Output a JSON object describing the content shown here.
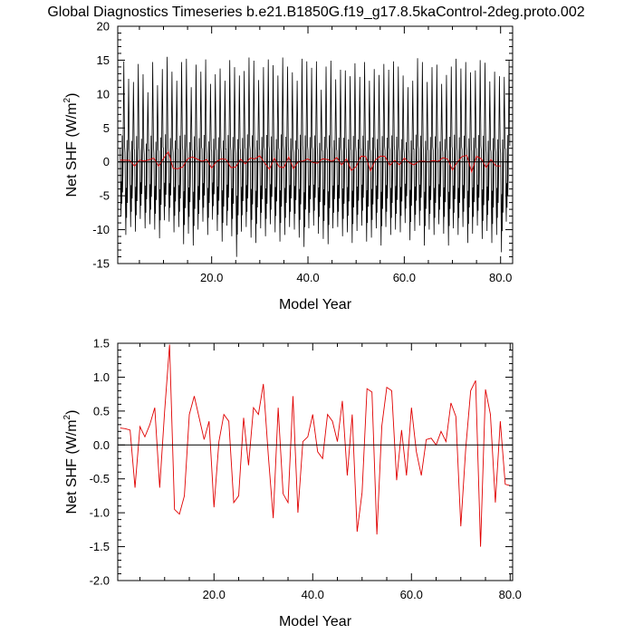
{
  "title": "Global Diagnostics Timeseries b.e21.B1850G.f19_g17.8.5kaControl-2deg.proto.002",
  "colors": {
    "monthly": "#000000",
    "annual": "#e00000",
    "axis": "#000000",
    "background": "#ffffff"
  },
  "chart_data": [
    {
      "type": "line",
      "name": "monthly-and-annual-net-shf",
      "xlabel": "Model Year",
      "ylabel": {
        "main": "Net SHF (W/m",
        "superscript": "2",
        "suffix": ")"
      },
      "xlim": [
        0.5,
        82.5
      ],
      "ylim": [
        -15,
        20
      ],
      "xticks": [
        20.0,
        40.0,
        60.0,
        80.0
      ],
      "xtick_labels": [
        "20.0",
        "40.0",
        "60.0",
        "80.0"
      ],
      "yticks": [
        -15,
        -10,
        -5,
        0,
        5,
        10,
        15,
        20
      ],
      "ytick_labels": [
        "-15",
        "-10",
        "-5",
        "0",
        "5",
        "10",
        "15",
        "20"
      ],
      "reference_line": 0,
      "series": [
        {
          "name": "monthly",
          "color": "#000000",
          "pattern": "seasonal cycle: annual peak ~ +12 to +16, annual trough ~ -8 to -14",
          "annual_peaks": [
            15.6,
            12.9,
            12.4,
            15.2,
            13.6,
            10.8,
            15.5,
            11.9,
            14.4,
            16.3,
            14.0,
            12.6,
            15.5,
            16.0,
            11.6,
            15.1,
            14.0,
            15.9,
            12.1,
            13.6,
            14.5,
            12.6,
            15.8,
            14.7,
            13.4,
            14.1,
            16.2,
            15.7,
            12.7,
            14.7,
            15.9,
            15.0,
            13.4,
            16.2,
            14.8,
            13.9,
            12.6,
            16.0,
            15.6,
            14.6,
            15.6,
            11.2,
            14.8,
            15.7,
            12.8,
            14.3,
            14.2,
            13.3,
            15.3,
            13.2,
            15.5,
            12.6,
            14.4,
            13.5,
            15.2,
            14.3,
            15.6,
            14.8,
            13.4,
            11.6,
            12.6,
            16.1,
            15.5,
            12.4,
            14.7,
            15.1,
            12.1,
            13.5,
            14.8,
            16.0,
            14.5,
            15.5,
            13.9,
            14.2,
            15.8,
            15.4,
            12.5,
            14.0,
            13.3,
            13.2,
            15.8
          ],
          "annual_troughs": [
            -8.2,
            -11.0,
            -9.8,
            -10.5,
            -8.6,
            -10.0,
            -9.4,
            -10.2,
            -11.5,
            -8.8,
            -9.0,
            -10.6,
            -9.8,
            -12.4,
            -10.8,
            -12.6,
            -10.2,
            -9.0,
            -11.0,
            -8.7,
            -10.4,
            -12.0,
            -9.6,
            -11.2,
            -14.3,
            -10.5,
            -9.8,
            -11.4,
            -12.2,
            -10.0,
            -11.2,
            -9.4,
            -10.6,
            -12.0,
            -11.0,
            -9.8,
            -10.2,
            -11.4,
            -12.8,
            -10.0,
            -9.6,
            -10.8,
            -11.6,
            -12.4,
            -10.0,
            -9.8,
            -11.2,
            -10.6,
            -12.2,
            -10.4,
            -9.6,
            -12.0,
            -11.4,
            -10.0,
            -12.6,
            -9.8,
            -11.0,
            -10.2,
            -10.6,
            -9.2,
            -11.8,
            -10.4,
            -9.6,
            -12.6,
            -10.2,
            -11.0,
            -9.4,
            -10.8,
            -12.6,
            -10.0,
            -11.0,
            -9.8,
            -12.2,
            -10.8,
            -9.6,
            -11.6,
            -10.4,
            -12.2,
            -11.0,
            -13.6,
            -9.0
          ]
        },
        {
          "name": "annual-mean",
          "color": "#e00000",
          "values": [
            0.25,
            0.24,
            0.22,
            -0.63,
            0.27,
            0.12,
            0.3,
            0.55,
            -0.63,
            0.5,
            1.48,
            -0.95,
            -1.02,
            -0.75,
            0.45,
            0.72,
            0.4,
            0.08,
            0.35,
            -0.92,
            0.05,
            0.45,
            0.35,
            -0.85,
            -0.75,
            0.4,
            -0.3,
            0.55,
            0.45,
            0.9,
            -0.15,
            -1.08,
            0.55,
            -0.72,
            -0.85,
            0.72,
            -1.0,
            0.05,
            0.12,
            0.45,
            -0.1,
            -0.2,
            0.45,
            0.35,
            0.05,
            0.65,
            -0.45,
            0.45,
            -1.28,
            -0.7,
            0.83,
            0.78,
            -1.32,
            0.28,
            0.85,
            0.8,
            -0.52,
            0.22,
            -0.45,
            0.55,
            -0.1,
            -0.45,
            0.08,
            0.1,
            0.0,
            0.2,
            0.05,
            0.62,
            0.42,
            -1.2,
            -0.05,
            0.8,
            0.95,
            -1.5,
            0.82,
            0.45,
            -0.85,
            0.35,
            -0.58,
            -0.6
          ]
        }
      ]
    },
    {
      "type": "line",
      "name": "annual-net-shf",
      "xlabel": "Model Year",
      "ylabel": {
        "main": "Net SHF (W/m",
        "superscript": "2",
        "suffix": ")"
      },
      "xlim": [
        0.5,
        80.5
      ],
      "ylim": [
        -2.0,
        1.5
      ],
      "xticks": [
        20.0,
        40.0,
        60.0,
        80.0
      ],
      "xtick_labels": [
        "20.0",
        "40.0",
        "60.0",
        "80.0"
      ],
      "yticks": [
        -2.0,
        -1.5,
        -1.0,
        -0.5,
        0.0,
        0.5,
        1.0,
        1.5
      ],
      "ytick_labels": [
        "-2.0",
        "-1.5",
        "-1.0",
        "-0.5",
        "0.0",
        "0.5",
        "1.0",
        "1.5"
      ],
      "reference_line": 0,
      "series": [
        {
          "name": "annual-mean",
          "color": "#e00000",
          "x": [
            1,
            2,
            3,
            4,
            5,
            6,
            7,
            8,
            9,
            10,
            11,
            12,
            13,
            14,
            15,
            16,
            17,
            18,
            19,
            20,
            21,
            22,
            23,
            24,
            25,
            26,
            27,
            28,
            29,
            30,
            31,
            32,
            33,
            34,
            35,
            36,
            37,
            38,
            39,
            40,
            41,
            42,
            43,
            44,
            45,
            46,
            47,
            48,
            49,
            50,
            51,
            52,
            53,
            54,
            55,
            56,
            57,
            58,
            59,
            60,
            61,
            62,
            63,
            64,
            65,
            66,
            67,
            68,
            69,
            70,
            71,
            72,
            73,
            74,
            75,
            76,
            77,
            78,
            79,
            80
          ],
          "values": [
            0.25,
            0.24,
            0.22,
            -0.63,
            0.27,
            0.12,
            0.3,
            0.55,
            -0.63,
            0.5,
            1.48,
            -0.95,
            -1.02,
            -0.75,
            0.45,
            0.72,
            0.4,
            0.08,
            0.35,
            -0.92,
            0.05,
            0.45,
            0.35,
            -0.85,
            -0.75,
            0.4,
            -0.3,
            0.55,
            0.45,
            0.9,
            -0.15,
            -1.08,
            0.55,
            -0.72,
            -0.85,
            0.72,
            -1.0,
            0.05,
            0.12,
            0.45,
            -0.1,
            -0.2,
            0.45,
            0.35,
            0.05,
            0.65,
            -0.45,
            0.45,
            -1.28,
            -0.7,
            0.83,
            0.78,
            -1.32,
            0.28,
            0.85,
            0.8,
            -0.52,
            0.22,
            -0.45,
            0.55,
            -0.1,
            -0.45,
            0.08,
            0.1,
            0.0,
            0.2,
            0.05,
            0.62,
            0.42,
            -1.2,
            -0.05,
            0.8,
            0.95,
            -1.5,
            0.82,
            0.45,
            -0.85,
            0.35,
            -0.58,
            -0.6
          ]
        }
      ]
    }
  ]
}
